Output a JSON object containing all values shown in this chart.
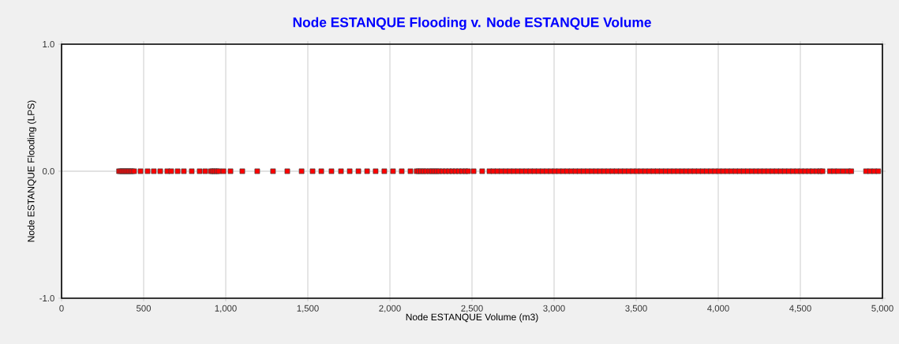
{
  "chart_data": {
    "type": "scatter",
    "title": "Node ESTANQUE Flooding v. Node ESTANQUE Volume",
    "xlabel": "Node ESTANQUE Volume (m3)",
    "ylabel": "Node ESTANQUE Flooding (LPS)",
    "xlim": [
      0,
      5000
    ],
    "ylim": [
      -1,
      1
    ],
    "xticks": [
      0,
      500,
      {
        "value": 1000,
        "label": "1,000"
      },
      {
        "value": 1500,
        "label": "1,500"
      },
      {
        "value": 2000,
        "label": "2,000"
      },
      {
        "value": 2500,
        "label": "2,500"
      },
      {
        "value": 3000,
        "label": "3,000"
      },
      {
        "value": 3500,
        "label": "3,500"
      },
      {
        "value": 4000,
        "label": "4,000"
      },
      {
        "value": 4500,
        "label": "4,500"
      },
      {
        "value": 5000,
        "label": "5,000"
      }
    ],
    "yticks": [
      {
        "value": -1,
        "label": "-1.0"
      },
      {
        "value": 0,
        "label": "0.0"
      },
      {
        "value": 1,
        "label": "1.0"
      }
    ],
    "grid": true,
    "marker": "square",
    "series": [
      {
        "color": "#ff0000",
        "x": [
          350,
          360,
          370,
          380,
          390,
          400,
          410,
          420,
          430,
          442,
          481,
          524,
          562,
          601,
          644,
          668,
          707,
          745,
          793,
          841,
          875,
          909,
          920,
          932,
          945,
          957,
          986,
          1029,
          1101,
          1192,
          1288,
          1375,
          1462,
          1529,
          1582,
          1644,
          1702,
          1755,
          1808,
          1861,
          1913,
          1966,
          2019,
          2072,
          2125,
          2163,
          2175,
          2190,
          2205,
          2221,
          2240,
          2255,
          2270,
          2285,
          2300,
          2320,
          2340,
          2360,
          2380,
          2400,
          2420,
          2440,
          2460,
          2476,
          2510,
          2562,
          2606,
          2630,
          2655,
          2680,
          2705,
          2730,
          2755,
          2780,
          2805,
          2830,
          2855,
          2880,
          2905,
          2930,
          2955,
          2980,
          3005,
          3030,
          3055,
          3080,
          3105,
          3130,
          3155,
          3180,
          3205,
          3230,
          3255,
          3280,
          3305,
          3330,
          3355,
          3380,
          3405,
          3430,
          3455,
          3480,
          3505,
          3530,
          3555,
          3580,
          3605,
          3630,
          3655,
          3680,
          3705,
          3730,
          3755,
          3780,
          3805,
          3830,
          3855,
          3880,
          3905,
          3930,
          3955,
          3980,
          4005,
          4030,
          4055,
          4080,
          4105,
          4130,
          4155,
          4180,
          4205,
          4230,
          4255,
          4280,
          4305,
          4330,
          4355,
          4380,
          4405,
          4430,
          4455,
          4480,
          4505,
          4529,
          4553,
          4575,
          4600,
          4620,
          4635,
          4680,
          4705,
          4730,
          4760,
          4790,
          4810,
          4900,
          4925,
          4950,
          4975
        ],
        "values": [
          0,
          0,
          0,
          0,
          0,
          0,
          0,
          0,
          0,
          0,
          0,
          0,
          0,
          0,
          0,
          0,
          0,
          0,
          0,
          0,
          0,
          0,
          0,
          0,
          0,
          0,
          0,
          0,
          0,
          0,
          0,
          0,
          0,
          0,
          0,
          0,
          0,
          0,
          0,
          0,
          0,
          0,
          0,
          0,
          0,
          0,
          0,
          0,
          0,
          0,
          0,
          0,
          0,
          0,
          0,
          0,
          0,
          0,
          0,
          0,
          0,
          0,
          0,
          0,
          0,
          0,
          0,
          0,
          0,
          0,
          0,
          0,
          0,
          0,
          0,
          0,
          0,
          0,
          0,
          0,
          0,
          0,
          0,
          0,
          0,
          0,
          0,
          0,
          0,
          0,
          0,
          0,
          0,
          0,
          0,
          0,
          0,
          0,
          0,
          0,
          0,
          0,
          0,
          0,
          0,
          0,
          0,
          0,
          0,
          0,
          0,
          0,
          0,
          0,
          0,
          0,
          0,
          0,
          0,
          0,
          0,
          0,
          0,
          0,
          0,
          0,
          0,
          0,
          0,
          0,
          0,
          0,
          0,
          0,
          0,
          0,
          0,
          0,
          0,
          0,
          0,
          0,
          0,
          0,
          0,
          0,
          0,
          0,
          0,
          0,
          0,
          0,
          0,
          0,
          0,
          0,
          0,
          0,
          0
        ]
      }
    ]
  }
}
